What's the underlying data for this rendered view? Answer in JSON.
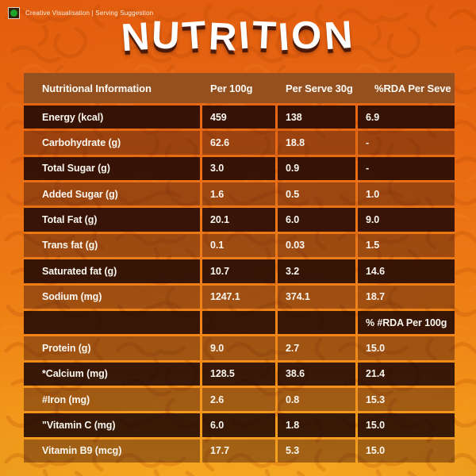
{
  "badge": {
    "caption": "Creative Visualisation | Serving Suggestion"
  },
  "title": "NUTRITION",
  "table": {
    "headers": [
      "Nutritional Information",
      "Per 100g",
      "Per Serve 30g",
      "%RDA Per Seve"
    ],
    "rda_note": "% #RDA Per 100g",
    "rows": [
      {
        "label": "Energy (kcal)",
        "per100g": "459",
        "perServe": "138",
        "rda": "6.9"
      },
      {
        "label": "Carbohydrate (g)",
        "per100g": "62.6",
        "perServe": "18.8",
        "rda": "-"
      },
      {
        "label": "Total Sugar (g)",
        "per100g": "3.0",
        "perServe": "0.9",
        "rda": "-"
      },
      {
        "label": "Added Sugar (g)",
        "per100g": "1.6",
        "perServe": "0.5",
        "rda": "1.0"
      },
      {
        "label": "Total Fat (g)",
        "per100g": "20.1",
        "perServe": "6.0",
        "rda": "9.0"
      },
      {
        "label": "Trans fat (g)",
        "per100g": "0.1",
        "perServe": "0.03",
        "rda": "1.5"
      },
      {
        "label": "Saturated fat (g)",
        "per100g": "10.7",
        "perServe": "3.2",
        "rda": "14.6"
      },
      {
        "label": "Sodium (mg)",
        "per100g": "1247.1",
        "perServe": "374.1",
        "rda": "18.7"
      },
      {
        "label": "",
        "per100g": "",
        "perServe": "",
        "rda": "% #RDA Per 100g"
      },
      {
        "label": "Protein (g)",
        "per100g": "9.0",
        "perServe": "2.7",
        "rda": "15.0"
      },
      {
        "label": "*Calcium (mg)",
        "per100g": "128.5",
        "perServe": "38.6",
        "rda": "21.4"
      },
      {
        "label": "#Iron (mg)",
        "per100g": "2.6",
        "perServe": "0.8",
        "rda": "15.3"
      },
      {
        "label": "\"Vitamin C (mg)",
        "per100g": "6.0",
        "perServe": "1.8",
        "rda": "15.0"
      },
      {
        "label": "Vitamin B9 (mcg)",
        "per100g": "17.7",
        "perServe": "5.3",
        "rda": "15.0"
      }
    ]
  },
  "colors": {
    "background_top": "#E25C0D",
    "background_bottom": "#F5A61F",
    "header_row": "#94511F",
    "dark_row": "#3B130C",
    "light_row": "#A4501B",
    "title_shadow": "#4A1A0A",
    "veg_mark_green": "#1CA42C",
    "text": "#FBF7F1"
  }
}
